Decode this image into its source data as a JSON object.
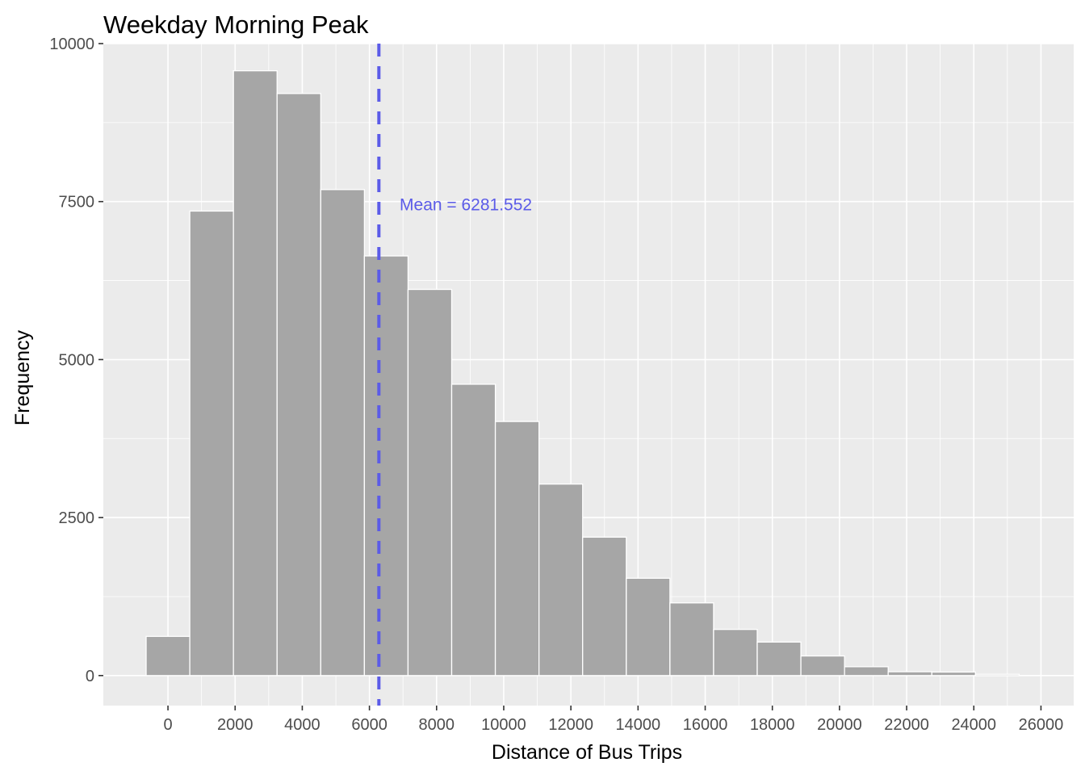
{
  "chart_data": {
    "type": "bar",
    "title": "Weekday Morning Peak",
    "xlabel": "Distance of Bus Trips",
    "ylabel": "Frequency",
    "bin_width": 1300,
    "bins": [
      {
        "center": 0,
        "count": 620
      },
      {
        "center": 1300,
        "count": 7350
      },
      {
        "center": 2600,
        "count": 9570
      },
      {
        "center": 3900,
        "count": 9210
      },
      {
        "center": 5200,
        "count": 7690
      },
      {
        "center": 6500,
        "count": 6640
      },
      {
        "center": 7800,
        "count": 6110
      },
      {
        "center": 9100,
        "count": 4610
      },
      {
        "center": 10400,
        "count": 4020
      },
      {
        "center": 11700,
        "count": 3030
      },
      {
        "center": 13000,
        "count": 2190
      },
      {
        "center": 14300,
        "count": 1540
      },
      {
        "center": 15600,
        "count": 1150
      },
      {
        "center": 16900,
        "count": 730
      },
      {
        "center": 18200,
        "count": 530
      },
      {
        "center": 19500,
        "count": 310
      },
      {
        "center": 20800,
        "count": 140
      },
      {
        "center": 22100,
        "count": 60
      },
      {
        "center": 23400,
        "count": 55
      },
      {
        "center": 24700,
        "count": 20
      }
    ],
    "xlim": [
      -1925,
      26975
    ],
    "ylim": [
      -475,
      10000
    ],
    "x_ticks": [
      0,
      2000,
      4000,
      6000,
      8000,
      10000,
      12000,
      14000,
      16000,
      18000,
      20000,
      22000,
      24000,
      26000
    ],
    "y_ticks": [
      0,
      2500,
      5000,
      7500,
      10000
    ],
    "x_tick_labels": [
      "0",
      "2000",
      "4000",
      "6000",
      "8000",
      "10000",
      "12000",
      "14000",
      "16000",
      "18000",
      "20000",
      "22000",
      "24000",
      "26000"
    ],
    "y_tick_labels": [
      "0",
      "2500",
      "5000",
      "7500",
      "10000"
    ],
    "grid": true,
    "mean_line": {
      "value": 6281.552,
      "color": "#5b5be8",
      "style": "dashed"
    },
    "annotation": {
      "text": "Mean = 6281.552",
      "x": 6900,
      "y": 7450,
      "color": "#5b5be8"
    },
    "colors": {
      "bar_fill": "#a6a6a6",
      "bar_stroke": "#ffffff",
      "panel": "#ebebeb",
      "grid": "#ffffff"
    }
  }
}
